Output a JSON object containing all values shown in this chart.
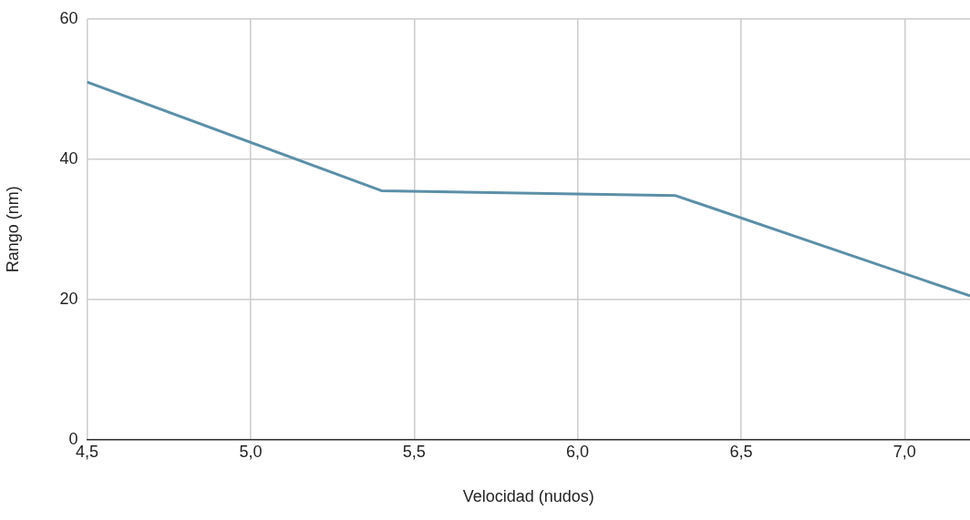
{
  "chart_data": {
    "type": "line",
    "xlabel": "Velocidad (nudos)",
    "ylabel": "Rango (nm)",
    "x": [
      4.5,
      5.4,
      6.3,
      7.2
    ],
    "series": [
      {
        "color": "#5b8fa8",
        "values": [
          51,
          35.5,
          34.8,
          20.5
        ]
      }
    ],
    "xlim": [
      4.5,
      7.2
    ],
    "xticks": [
      {
        "value": 4.5,
        "label": "4,5"
      },
      {
        "value": 5.0,
        "label": "5,0"
      },
      {
        "value": 5.5,
        "label": "5,5"
      },
      {
        "value": 6.0,
        "label": "6,0"
      },
      {
        "value": 6.5,
        "label": "6,5"
      },
      {
        "value": 7.0,
        "label": "7,0"
      }
    ],
    "ylim": [
      0,
      60
    ],
    "yticks": [
      0,
      20,
      40,
      60
    ],
    "grid": true,
    "legend": false,
    "marker": "none",
    "line_style": "solid"
  }
}
